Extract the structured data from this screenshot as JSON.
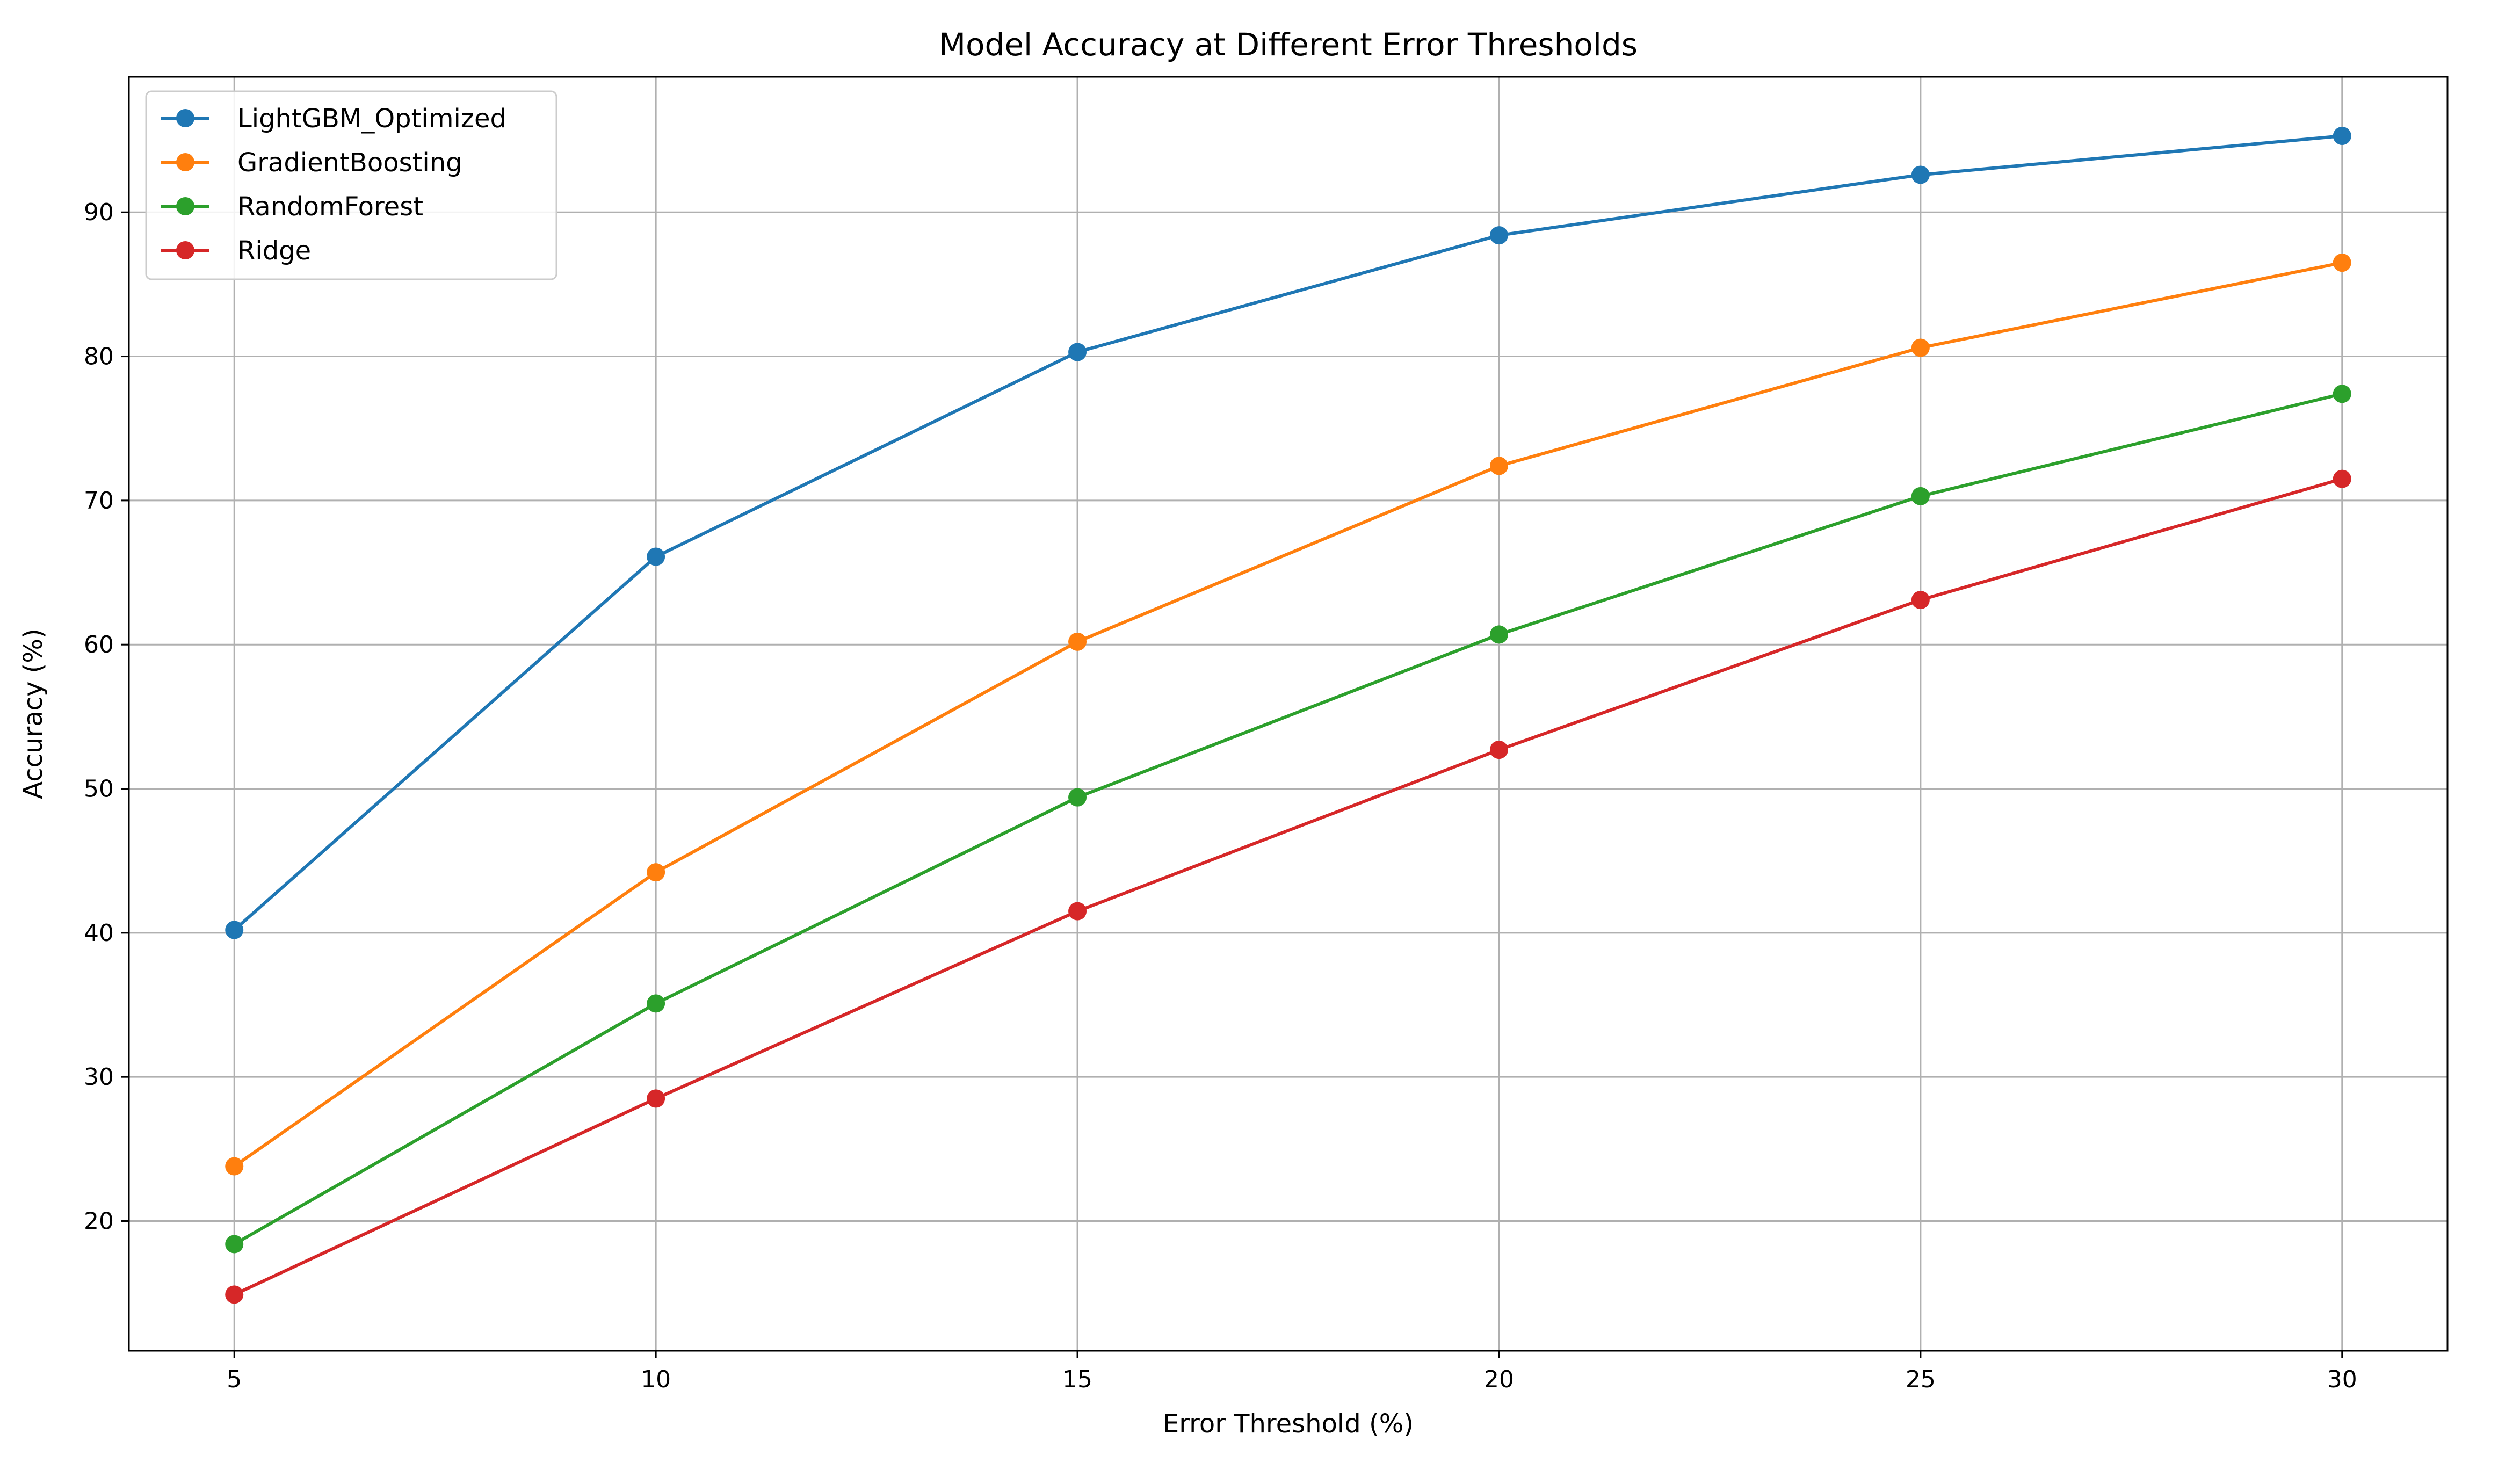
{
  "chart_data": {
    "type": "line",
    "title": "Model Accuracy at Different Error Thresholds",
    "xlabel": "Error Threshold (%)",
    "ylabel": "Accuracy (%)",
    "x": [
      5,
      10,
      15,
      20,
      25,
      30
    ],
    "xticks": [
      5,
      10,
      15,
      20,
      25,
      30
    ],
    "yticks": [
      20,
      30,
      40,
      50,
      60,
      70,
      80,
      90
    ],
    "xlim": [
      3.75,
      31.25
    ],
    "ylim": [
      11.0,
      99.4
    ],
    "grid": true,
    "legend_position": "top-left",
    "series": [
      {
        "name": "LightGBM_Optimized",
        "color": "#1f77b4",
        "values": [
          40.2,
          66.1,
          80.3,
          88.4,
          92.6,
          95.3
        ]
      },
      {
        "name": "GradientBoosting",
        "color": "#ff7f0e",
        "values": [
          23.8,
          44.2,
          60.2,
          72.4,
          80.6,
          86.5
        ]
      },
      {
        "name": "RandomForest",
        "color": "#2ca02c",
        "values": [
          18.4,
          35.1,
          49.4,
          60.7,
          70.3,
          77.4
        ]
      },
      {
        "name": "Ridge",
        "color": "#d62728",
        "values": [
          14.9,
          28.5,
          41.5,
          52.7,
          63.1,
          71.5
        ]
      }
    ]
  }
}
